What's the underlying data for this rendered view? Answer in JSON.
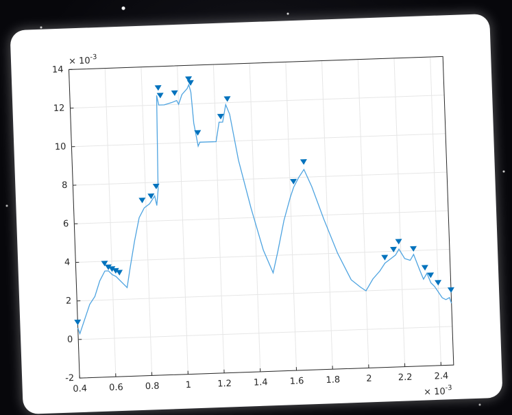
{
  "chart_data": {
    "type": "line",
    "x": [
      0.4,
      0.41,
      0.43,
      0.47,
      0.5,
      0.53,
      0.56,
      0.58,
      0.6,
      0.62,
      0.64,
      0.66,
      0.68,
      0.7,
      0.73,
      0.76,
      0.79,
      0.82,
      0.85,
      0.86,
      0.87,
      0.88,
      0.89,
      0.92,
      0.96,
      0.99,
      1.0,
      1.02,
      1.05,
      1.06,
      1.07,
      1.08,
      1.1,
      1.11,
      1.18,
      1.2,
      1.22,
      1.24,
      1.26,
      1.28,
      1.32,
      1.38,
      1.44,
      1.49,
      1.52,
      1.56,
      1.6,
      1.62,
      1.65,
      1.68,
      1.72,
      1.78,
      1.85,
      1.92,
      1.97,
      2.0,
      2.04,
      2.08,
      2.11,
      2.14,
      2.17,
      2.19,
      2.22,
      2.25,
      2.27,
      2.3,
      2.32,
      2.34,
      2.36,
      2.38,
      2.4,
      2.42,
      2.44,
      2.46,
      2.47
    ],
    "series": [
      {
        "color": "#4da3e0",
        "values": [
          0.6,
          0.3,
          0.8,
          1.8,
          2.2,
          3.0,
          3.5,
          3.5,
          3.3,
          3.2,
          3.0,
          2.8,
          2.6,
          3.6,
          5.0,
          6.2,
          6.7,
          6.9,
          7.3,
          6.8,
          7.6,
          12.5,
          12.0,
          12.0,
          12.1,
          12.2,
          12.0,
          12.5,
          12.8,
          13.0,
          12.6,
          11.0,
          9.8,
          10.0,
          10.0,
          10.0,
          11.0,
          11.0,
          11.9,
          11.4,
          9.0,
          6.5,
          4.3,
          3.1,
          4.2,
          5.8,
          7.0,
          7.5,
          8.0,
          8.4,
          7.5,
          5.8,
          4.0,
          2.6,
          2.2,
          2.0,
          2.6,
          3.0,
          3.4,
          3.6,
          3.8,
          4.1,
          3.6,
          3.5,
          3.8,
          3.0,
          2.5,
          2.8,
          2.3,
          2.1,
          1.8,
          1.5,
          1.4,
          1.5,
          1.2
        ]
      }
    ],
    "peaks": {
      "color": "#0072bd",
      "x": [
        0.4,
        0.56,
        0.58,
        0.6,
        0.62,
        0.64,
        0.78,
        0.83,
        0.86,
        0.89,
        0.9,
        0.98,
        1.06,
        1.07,
        1.1,
        1.23,
        1.27,
        1.62,
        1.68,
        2.11,
        2.16,
        2.19,
        2.27,
        2.33,
        2.36,
        2.4,
        2.47
      ],
      "values": [
        0.6,
        3.6,
        3.4,
        3.3,
        3.2,
        3.1,
        6.8,
        7.0,
        7.5,
        12.6,
        12.2,
        12.3,
        13.0,
        12.8,
        10.2,
        11.0,
        11.9,
        7.5,
        8.5,
        3.4,
        3.8,
        4.2,
        3.8,
        2.8,
        2.4,
        2.0,
        1.6
      ]
    },
    "xlim": [
      0.4,
      2.47
    ],
    "ylim": [
      -2,
      14
    ],
    "xticks": [
      0.4,
      0.6,
      0.8,
      1,
      1.2,
      1.4,
      1.6,
      1.8,
      2,
      2.2,
      2.4
    ],
    "yticks": [
      -2,
      0,
      2,
      4,
      6,
      8,
      10,
      12,
      14
    ],
    "x_multiplier": {
      "base": "× 10",
      "exponent": "-3"
    },
    "y_multiplier": {
      "base": "× 10",
      "exponent": "-3"
    },
    "grid": true
  }
}
